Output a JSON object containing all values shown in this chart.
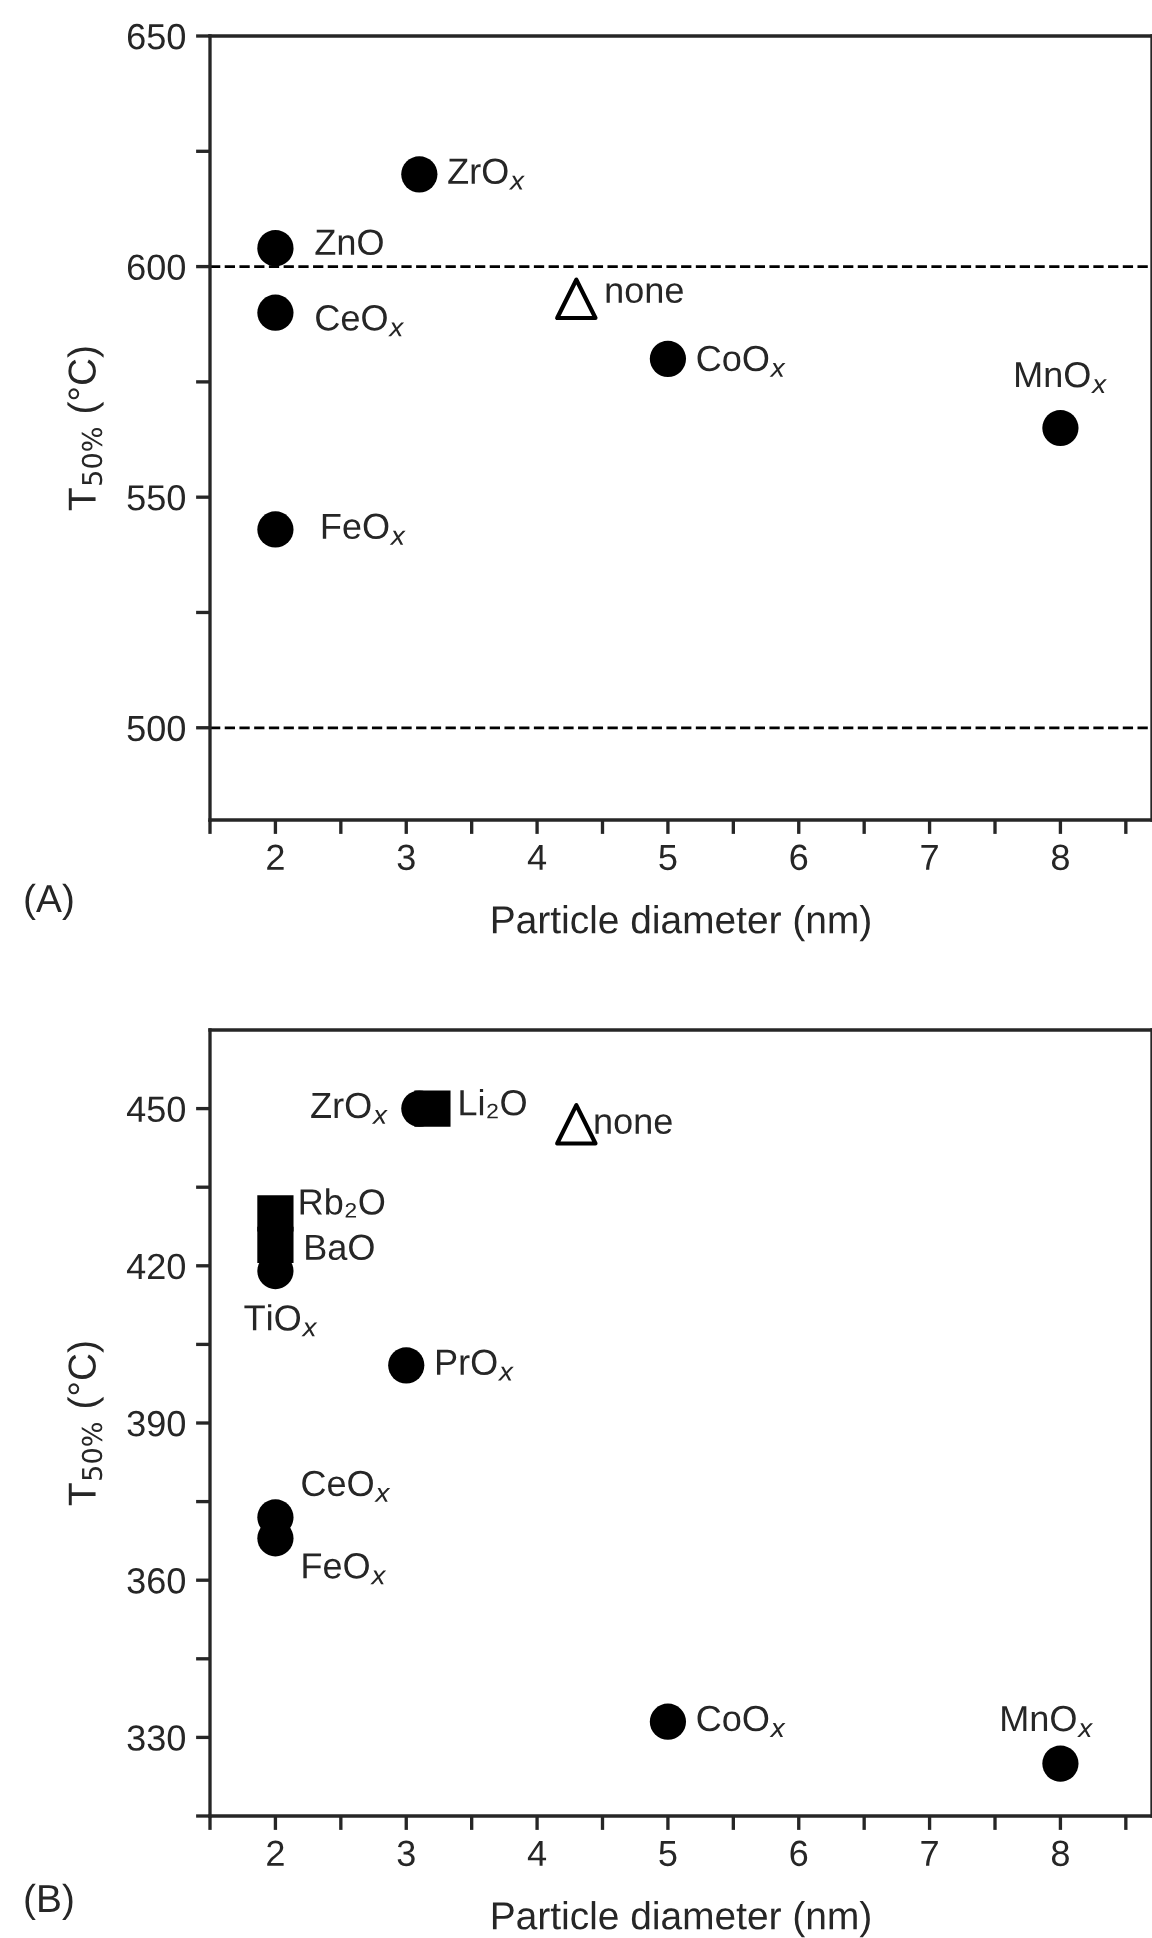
{
  "chart_data": [
    {
      "type": "scatter",
      "xlabel": "Particle diameter (nm)",
      "ylabel": "T$_{50%}$ (°C)",
      "xlim": [
        1.5,
        8.7
      ],
      "ylim": [
        480,
        650
      ],
      "xticks": [
        {
          "value": 1.5,
          "label": null
        },
        2,
        {
          "value": 2.5,
          "label": null
        },
        3,
        {
          "value": 3.5,
          "label": null
        },
        4,
        {
          "value": 4.5,
          "label": null
        },
        5,
        {
          "value": 5.5,
          "label": null
        },
        6,
        {
          "value": 6.5,
          "label": null
        },
        7,
        {
          "value": 7.5,
          "label": null
        },
        8,
        {
          "value": 8.5,
          "label": null
        }
      ],
      "yticks": [
        500,
        {
          "value": 525,
          "label": null
        },
        550,
        {
          "value": 575,
          "label": null
        },
        600,
        {
          "value": 625,
          "label": null
        },
        650
      ],
      "grid": false,
      "legend": false,
      "series": [
        {
          "marker": "circle",
          "color": "#000000",
          "x": [
            3.1,
            2,
            2,
            2,
            5,
            8
          ],
          "values": [
            620,
            604,
            590,
            543,
            580,
            565
          ]
        },
        {
          "marker": "triangle",
          "color": "#000000",
          "x": [
            4.3
          ],
          "values": [
            593
          ]
        }
      ],
      "ref_lines": [
        {
          "axis": "y",
          "value": 600,
          "line_style": "dashed",
          "color": "#000000"
        },
        {
          "axis": "y",
          "value": 500,
          "line_style": "dashed",
          "color": "#000000"
        }
      ],
      "annotations": [
        {
          "text": "ZrO$_{x}$",
          "x": 3.1,
          "y": 620
        },
        {
          "text": "ZnO",
          "x": 2,
          "y": 604
        },
        {
          "text": "CeO$_{x}$",
          "x": 2,
          "y": 590
        },
        {
          "text": "FeO$_{x}$",
          "x": 2,
          "y": 543
        },
        {
          "text": "none",
          "x": 4.3,
          "y": 593
        },
        {
          "text": "CoO$_{x}$",
          "x": 5,
          "y": 580
        },
        {
          "text": "MnO$_{x}$",
          "x": 8,
          "y": 565
        },
        "(A)"
      ]
    },
    {
      "type": "scatter",
      "xlabel": "Particle diameter (nm)",
      "ylabel": "T$_{50%}$ (°C)",
      "xlim": [
        1.5,
        8.7
      ],
      "ylim": [
        315,
        465
      ],
      "xticks": [
        {
          "value": 1.5,
          "label": null
        },
        2,
        {
          "value": 2.5,
          "label": null
        },
        3,
        {
          "value": 3.5,
          "label": null
        },
        4,
        {
          "value": 4.5,
          "label": null
        },
        5,
        {
          "value": 5.5,
          "label": null
        },
        6,
        {
          "value": 6.5,
          "label": null
        },
        7,
        {
          "value": 7.5,
          "label": null
        },
        8,
        {
          "value": 8.5,
          "label": null
        }
      ],
      "yticks": [
        {
          "value": 315,
          "label": null
        },
        330,
        {
          "value": 345,
          "label": null
        },
        360,
        {
          "value": 375,
          "label": null
        },
        390,
        {
          "value": 405,
          "label": null
        },
        420,
        {
          "value": 435,
          "label": null
        },
        450
      ],
      "grid": false,
      "legend": false,
      "series": [
        {
          "marker": "circle",
          "color": "#000000",
          "x": [
            3.1,
            2,
            3,
            2,
            2,
            5,
            8
          ],
          "values": [
            450,
            419,
            401,
            372,
            368,
            333,
            325
          ]
        },
        {
          "marker": "square",
          "color": "#000000",
          "x": [
            3.2,
            2,
            2
          ],
          "values": [
            450,
            430,
            424
          ]
        },
        {
          "marker": "triangle",
          "color": "#000000",
          "x": [
            4.3
          ],
          "values": [
            447
          ]
        }
      ],
      "annotations": [
        {
          "text": "ZrO$_{x}$",
          "x": 3.1,
          "y": 450
        },
        {
          "text": "Li₂O",
          "x": 3.2,
          "y": 450
        },
        {
          "text": "none",
          "x": 4.3,
          "y": 447
        },
        {
          "text": "Rb₂O",
          "x": 2,
          "y": 430
        },
        {
          "text": "BaO",
          "x": 2,
          "y": 424
        },
        {
          "text": "TiO$_{x}$",
          "x": 2,
          "y": 419
        },
        {
          "text": "PrO$_{x}$",
          "x": 3,
          "y": 401
        },
        {
          "text": "CeO$_{x}$",
          "x": 2,
          "y": 372
        },
        {
          "text": "FeO$_{x}$",
          "x": 2,
          "y": 368
        },
        {
          "text": "CoO$_{x}$",
          "x": 5,
          "y": 333
        },
        {
          "text": "MnO$_{x}$",
          "x": 8,
          "y": 325
        },
        "(B)"
      ]
    }
  ]
}
